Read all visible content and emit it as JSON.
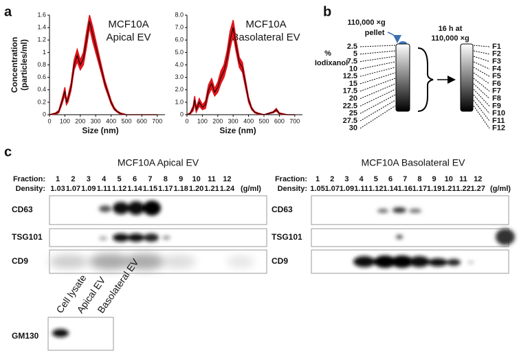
{
  "chart_data": [
    {
      "type": "line",
      "title": [
        "MCF10A",
        "Apical EV"
      ],
      "ylabel": [
        "Concentration",
        "(particles/ml)"
      ],
      "xlabel": "Size (nm)",
      "x": [
        0,
        40,
        60,
        80,
        100,
        110,
        120,
        140,
        160,
        180,
        200,
        220,
        240,
        260,
        280,
        300,
        320,
        340,
        360,
        380,
        400,
        420,
        440,
        460,
        500,
        700
      ],
      "series": [
        {
          "color": "#000000",
          "band_color": "#e0141b",
          "values": [
            0,
            0.02,
            0.05,
            0.2,
            0.38,
            0.2,
            0.25,
            0.45,
            0.8,
            0.95,
            0.8,
            0.9,
            1.2,
            1.5,
            1.3,
            1.1,
            0.9,
            0.7,
            0.5,
            0.35,
            0.2,
            0.1,
            0.05,
            0.02,
            0,
            0
          ],
          "errors": [
            0,
            0.01,
            0.02,
            0.04,
            0.06,
            0.04,
            0.05,
            0.06,
            0.08,
            0.1,
            0.08,
            0.1,
            0.12,
            0.1,
            0.12,
            0.1,
            0.08,
            0.06,
            0.05,
            0.04,
            0.03,
            0.02,
            0.01,
            0.01,
            0,
            0
          ]
        }
      ],
      "xlim": [
        0,
        750
      ],
      "xticks": [
        0,
        100,
        200,
        300,
        400,
        500,
        600,
        700
      ],
      "ylim": [
        0,
        1.6
      ],
      "yticks": [
        0,
        0.2,
        0.4,
        0.6,
        0.8,
        1,
        1.2,
        1.4,
        1.6
      ]
    },
    {
      "type": "line",
      "title": [
        "MCF10A",
        "Basolateral EV"
      ],
      "xlabel": "Size (nm)",
      "x": [
        0,
        20,
        40,
        50,
        60,
        80,
        100,
        120,
        140,
        160,
        180,
        200,
        220,
        240,
        260,
        280,
        300,
        320,
        340,
        360,
        380,
        400,
        420,
        440,
        460,
        500,
        560,
        580,
        600,
        650,
        700
      ],
      "series": [
        {
          "color": "#000000",
          "band_color": "#e0141b",
          "values": [
            0,
            0.1,
            0.5,
            1.2,
            0.4,
            1.0,
            0.6,
            0.8,
            2.0,
            2.5,
            1.8,
            2.2,
            3.0,
            3.5,
            4.5,
            6.0,
            7.0,
            5.5,
            4.2,
            3.8,
            2.5,
            1.2,
            0.5,
            0.2,
            0.1,
            0,
            0.2,
            0.4,
            0.1,
            0,
            0
          ],
          "errors": [
            0,
            0.05,
            0.2,
            0.3,
            0.2,
            0.3,
            0.2,
            0.3,
            0.4,
            0.4,
            0.3,
            0.4,
            0.5,
            0.5,
            0.6,
            0.7,
            0.6,
            0.5,
            0.4,
            0.4,
            0.3,
            0.2,
            0.1,
            0.05,
            0.05,
            0,
            0.05,
            0.1,
            0.05,
            0,
            0
          ]
        }
      ],
      "xlim": [
        0,
        750
      ],
      "xticks": [
        0,
        100,
        200,
        300,
        400,
        500,
        600,
        700
      ],
      "ylim": [
        0,
        8
      ],
      "yticks": [
        0,
        {
          "value": 1,
          "label": "1.0"
        },
        {
          "value": 2,
          "label": "2.0"
        },
        {
          "value": 3,
          "label": "3.0"
        },
        {
          "value": 4,
          "label": "4.0"
        },
        {
          "value": 5,
          "label": "5.0"
        },
        {
          "value": 6,
          "label": "6.0"
        },
        {
          "value": 7,
          "label": "7.0"
        },
        {
          "value": 8,
          "label": "8.0"
        }
      ]
    }
  ],
  "panel_labels": [
    "a",
    "b",
    "c"
  ],
  "gradient": {
    "pellet": [
      "110,000 ×g",
      "pellet"
    ],
    "axis_label": [
      "%",
      "Iodixanol"
    ],
    "percentages": [
      "2.5",
      "5",
      "7.5",
      "10",
      "12.5",
      "15",
      "17.5",
      "20",
      "22.5",
      "25",
      "27.5",
      "30"
    ],
    "spin": [
      "16 h at",
      "110,000 ×g"
    ],
    "fractions": [
      "F1",
      "F2",
      "F3",
      "F4",
      "F5",
      "F6",
      "F7",
      "F8",
      "F9",
      "F10",
      "F11",
      "F12"
    ]
  },
  "blots": [
    {
      "title": "MCF10A Apical EV",
      "fraction_label": "Fraction:",
      "density_label": "Density:",
      "unit": "(g/ml)",
      "fractions": [
        "1",
        "2",
        "3",
        "4",
        "5",
        "6",
        "7",
        "8",
        "9",
        "10",
        "11",
        "12"
      ],
      "densities": [
        "1.03",
        "1.07",
        "1.09",
        "1.11",
        "1.12",
        "1.14",
        "1.15",
        "1.17",
        "1.18",
        "1.20",
        "1.21",
        "1.24"
      ],
      "rows": [
        "CD63",
        "TSG101",
        "CD9"
      ]
    },
    {
      "title": "MCF10A Basolateral EV",
      "fraction_label": "Fraction:",
      "density_label": "Density:",
      "unit": "(g/ml)",
      "fractions": [
        "1",
        "2",
        "3",
        "4",
        "5",
        "6",
        "7",
        "8",
        "9",
        "10",
        "11",
        "12"
      ],
      "densities": [
        "1.05",
        "1.07",
        "1.09",
        "1.11",
        "1.12",
        "1.14",
        "1.16",
        "1.17",
        "1.19",
        "1.21",
        "1.22",
        "1.27"
      ],
      "rows": [
        "CD63",
        "TSG101",
        "CD9"
      ]
    }
  ],
  "gm130_blot": {
    "lanes": [
      "Cell lysate",
      "Apical EV",
      "Basolateral EV"
    ],
    "row": "GM130"
  }
}
